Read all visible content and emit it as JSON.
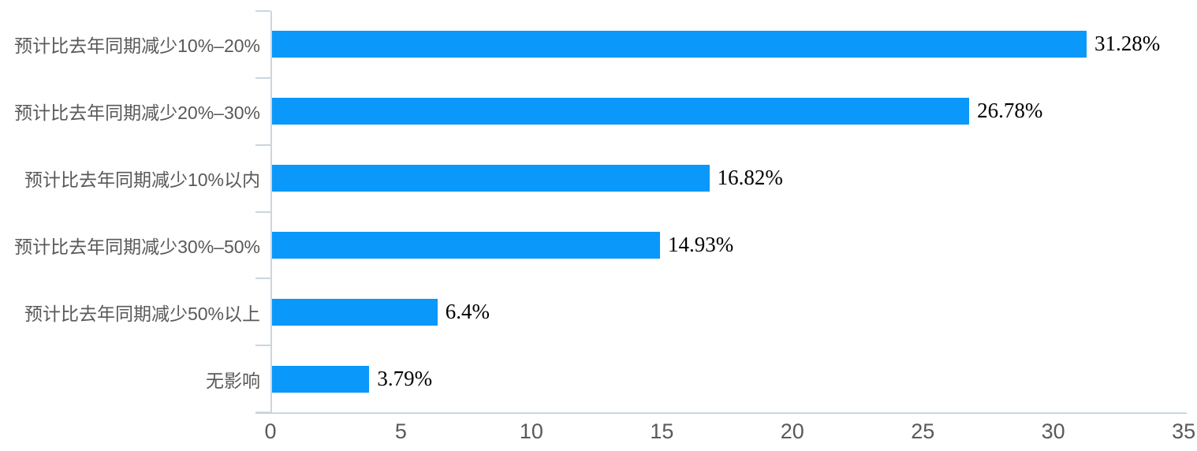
{
  "chart_data": {
    "type": "bar",
    "orientation": "horizontal",
    "title": "",
    "xlabel": "",
    "ylabel": "",
    "categories": [
      "预计比去年同期减少10%–20%",
      "预计比去年同期减少20%–30%",
      "预计比去年同期减少10%以内",
      "预计比去年同期减少30%–50%",
      "预计比去年同期减少50%以上",
      "无影响"
    ],
    "values": [
      31.28,
      26.78,
      16.82,
      14.93,
      6.4,
      3.79
    ],
    "value_labels": [
      "31.28%",
      "26.78%",
      "16.82%",
      "14.93%",
      "6.4%",
      "3.79%"
    ],
    "x_ticks": [
      0,
      5,
      10,
      15,
      20,
      25,
      30,
      35
    ],
    "xlim": [
      0,
      35
    ],
    "grid": false,
    "legend": null,
    "colors": {
      "bar": "#0A98FB",
      "axis": "#CBD6DE",
      "category_label": "#595959",
      "tick_label": "#595959",
      "value_label": "#000000",
      "background": "#FFFFFF"
    }
  }
}
